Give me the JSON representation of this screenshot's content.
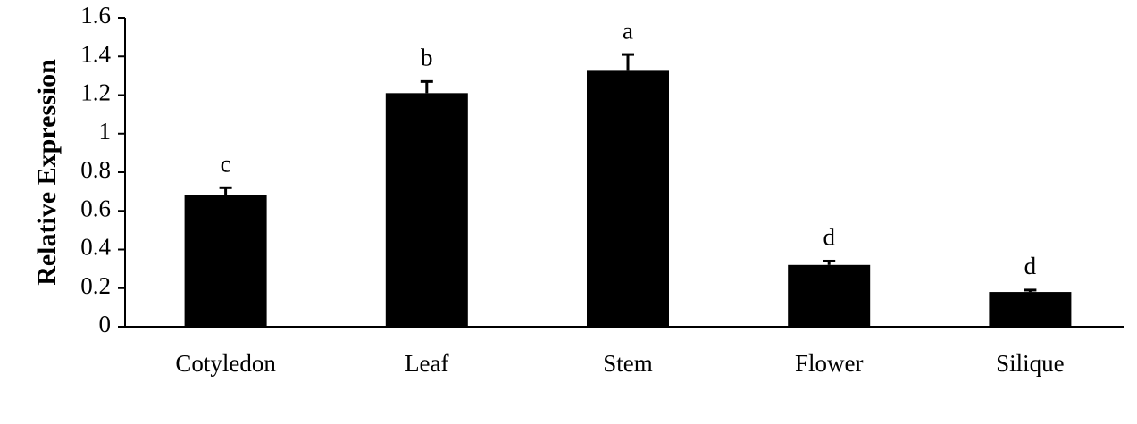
{
  "chart_data": {
    "type": "bar",
    "y_label": "Relative Expression",
    "categories": [
      "Cotyledon",
      "Leaf",
      "Stem",
      "Flower",
      "Silique"
    ],
    "values": [
      0.68,
      1.21,
      1.33,
      0.32,
      0.18
    ],
    "errors": [
      0.04,
      0.06,
      0.08,
      0.02,
      0.01
    ],
    "significance": [
      "c",
      "b",
      "a",
      "d",
      "d"
    ],
    "color": "#000000",
    "ylim": [
      0,
      1.6
    ],
    "yticks": [
      0,
      0.2,
      0.4,
      0.6,
      0.8,
      1,
      1.2,
      1.4,
      1.6
    ],
    "grid": false
  }
}
